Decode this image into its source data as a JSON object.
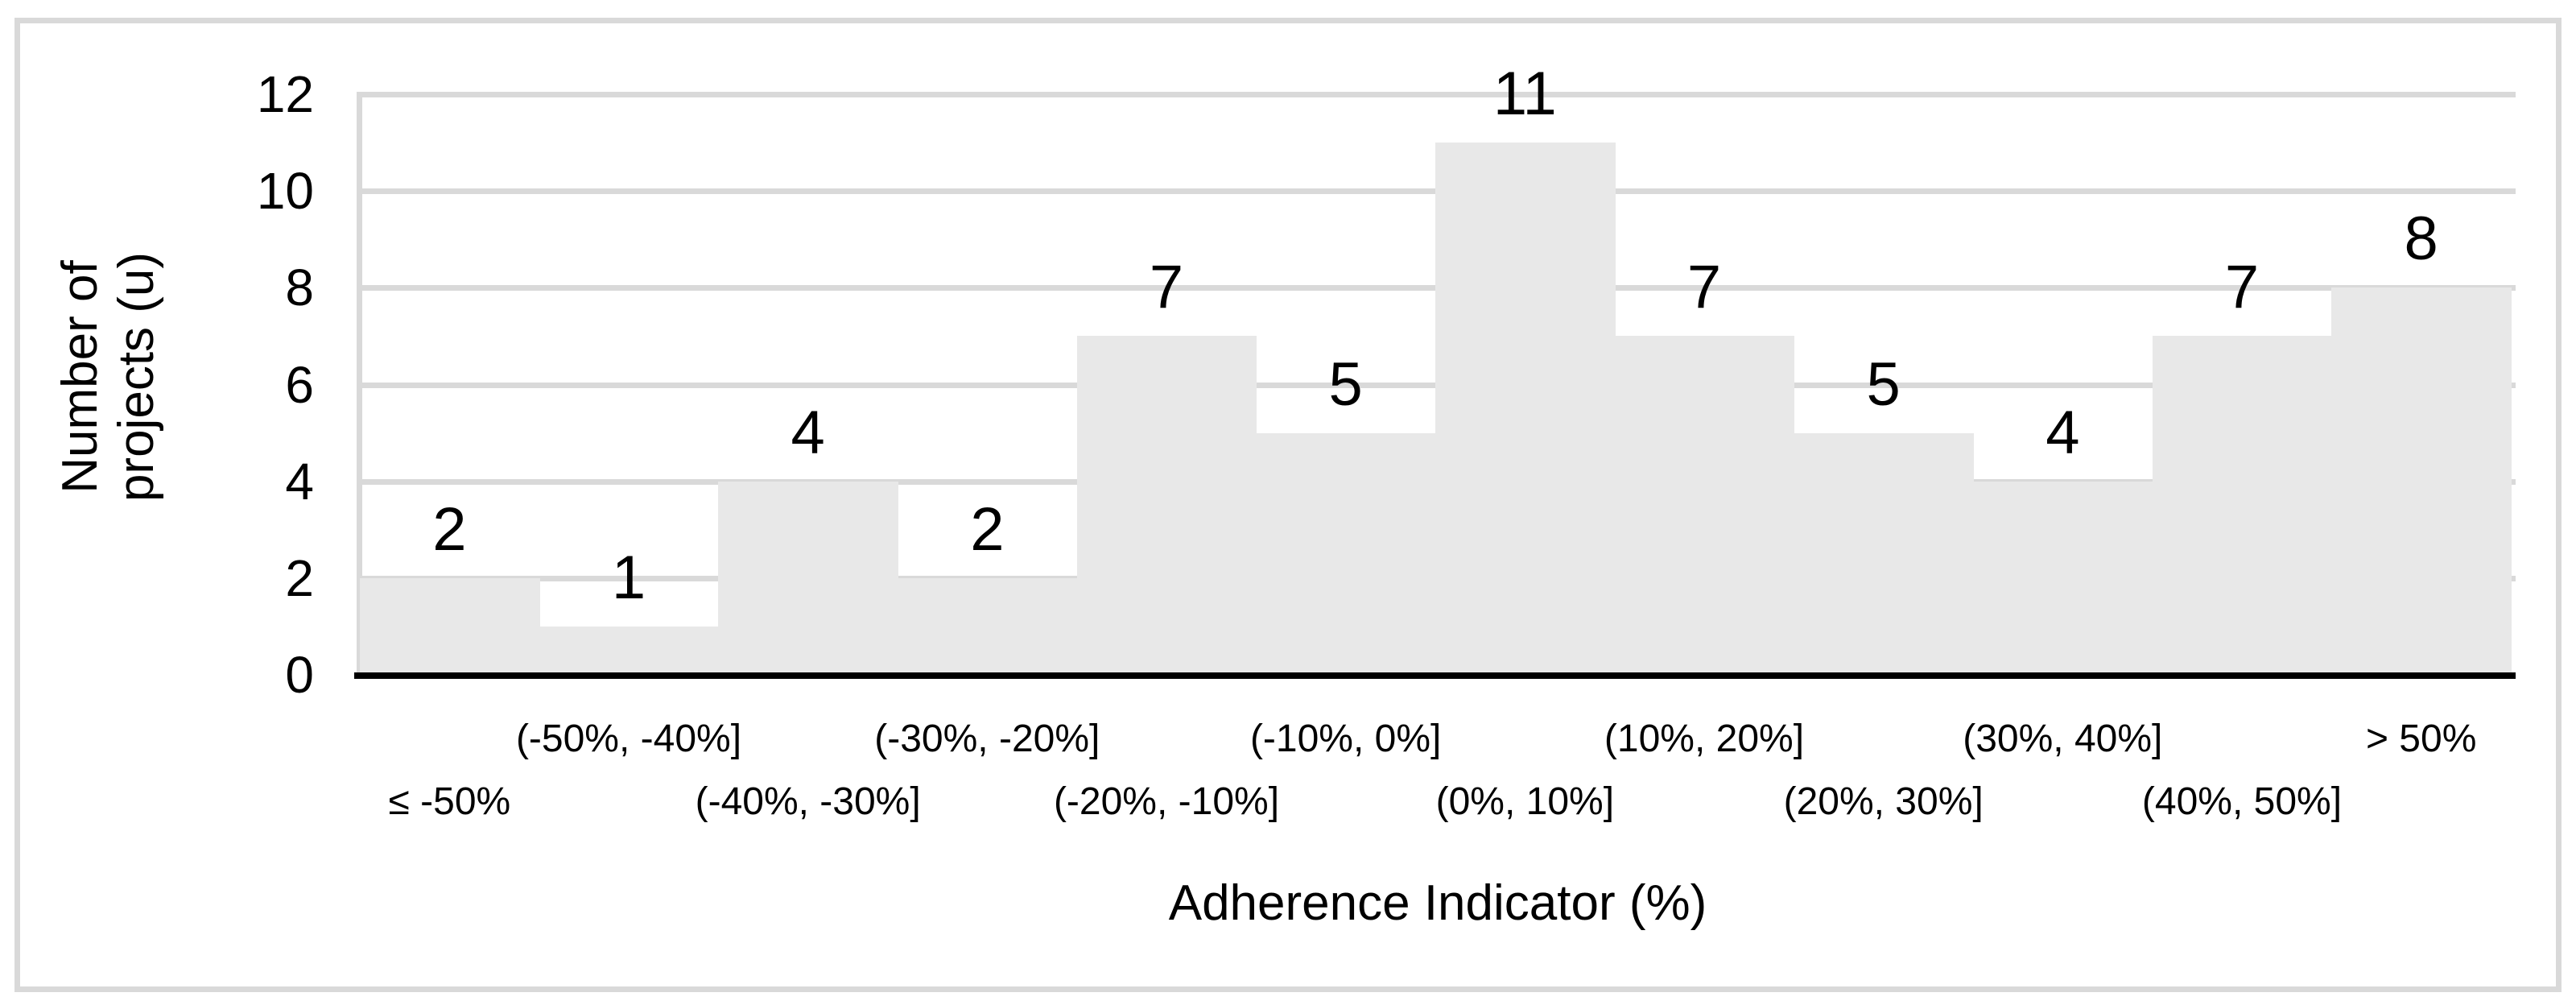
{
  "chart_data": {
    "type": "bar",
    "title": "",
    "categories": [
      "≤ -50%",
      "(-50%, -40%]",
      "(-40%, -30%]",
      "(-30%, -20%]",
      "(-20%, -10%]",
      "(-10%, 0%]",
      "(0%, 10%]",
      "(10%, 20%]",
      "(20%, 30%]",
      "(30%, 40%]",
      "(40%, 50%]",
      "> 50%"
    ],
    "values": [
      2,
      1,
      4,
      2,
      7,
      5,
      11,
      7,
      5,
      4,
      7,
      8
    ],
    "data_labels": [
      "2",
      "1",
      "4",
      "2",
      "7",
      "5",
      "11",
      "7",
      "5",
      "4",
      "7",
      "8"
    ],
    "xlabel": "Adherence Indicator (%)",
    "ylabel": "Number of projects (u)",
    "ylabel_lines": [
      "Number of",
      "projects (u)"
    ],
    "ylim": [
      0,
      12
    ],
    "yticks": [
      0,
      2,
      4,
      6,
      8,
      10,
      12
    ],
    "grid": true,
    "legend": false,
    "x_label_rows": "staggered",
    "colors": {
      "bar_fill": "#E8E8E8",
      "gridline": "#D9D9D9",
      "frame_border": "#D9D9D9",
      "baseline_axis": "#000000",
      "text": "#000000"
    }
  }
}
